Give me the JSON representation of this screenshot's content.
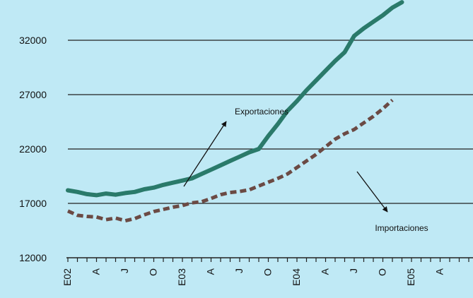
{
  "chart_data": {
    "type": "line",
    "title": "",
    "xlabel": "",
    "ylabel": "",
    "ylim": [
      12000,
      35500
    ],
    "yticks": [
      12000,
      17000,
      22000,
      27000,
      32000
    ],
    "grid": "horizontal",
    "x_tick_labels": [
      "E02",
      "A",
      "J",
      "O",
      "E03",
      "A",
      "J",
      "O",
      "E04",
      "A",
      "J",
      "O",
      "E05",
      "A"
    ],
    "series": [
      {
        "name": "Exportaciones",
        "color": "#2a7a6a",
        "style": "solid",
        "values": [
          18200,
          18050,
          17850,
          17750,
          17900,
          17800,
          17950,
          18050,
          18300,
          18450,
          18700,
          18900,
          19100,
          19300,
          19700,
          20100,
          20500,
          20900,
          21300,
          21700,
          22000,
          23200,
          24300,
          25500,
          26400,
          27400,
          28300,
          29200,
          30100,
          30900,
          32400,
          33100,
          33700,
          34300,
          35000,
          35500
        ]
      },
      {
        "name": "Importaciones",
        "color": "#6b4a44",
        "style": "dashed",
        "values": [
          16300,
          15900,
          15800,
          15750,
          15500,
          15650,
          15400,
          15600,
          15950,
          16250,
          16450,
          16650,
          16800,
          17050,
          17150,
          17450,
          17800,
          18000,
          18100,
          18250,
          18600,
          18950,
          19300,
          19700,
          20300,
          20900,
          21500,
          22200,
          22900,
          23400,
          23800,
          24400,
          25000,
          25700,
          26500
        ]
      }
    ],
    "annotations": [
      {
        "text": "Exportaciones",
        "series": 0
      },
      {
        "text": "Importaciones",
        "series": 1
      }
    ]
  }
}
